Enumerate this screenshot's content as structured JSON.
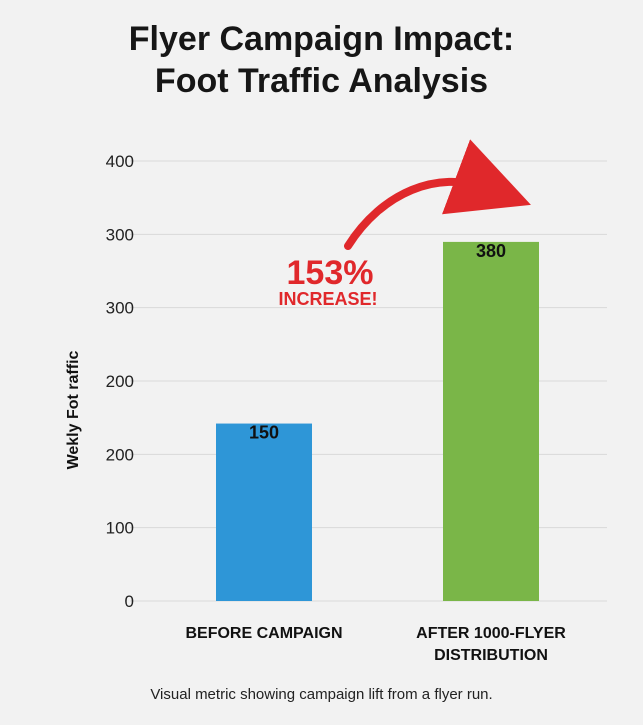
{
  "chart_data": {
    "type": "bar",
    "title": [
      "Flyer Campaign Impact:",
      "Foot Traffic Analysis"
    ],
    "ylabel": "Wekly Fot raffic",
    "xlabel": "",
    "y_tick_labels": [
      "0",
      "100",
      "200",
      "200",
      "300",
      "300",
      "400"
    ],
    "categories": [
      [
        "BEFORE CAMPAIGN"
      ],
      [
        "AFTER 1000-FLYER",
        "DISTRIBUTION"
      ]
    ],
    "values": [
      150,
      380
    ],
    "data_labels": [
      "150",
      "380"
    ],
    "bar_colors": [
      "#2e96d7",
      "#7ab648"
    ],
    "annotation": {
      "percent": "153%",
      "text": "INCREASE!",
      "color": "#e0282b"
    },
    "grid": true,
    "legend": "none"
  },
  "caption": "Visual metric showing campaign lift from a flyer run."
}
